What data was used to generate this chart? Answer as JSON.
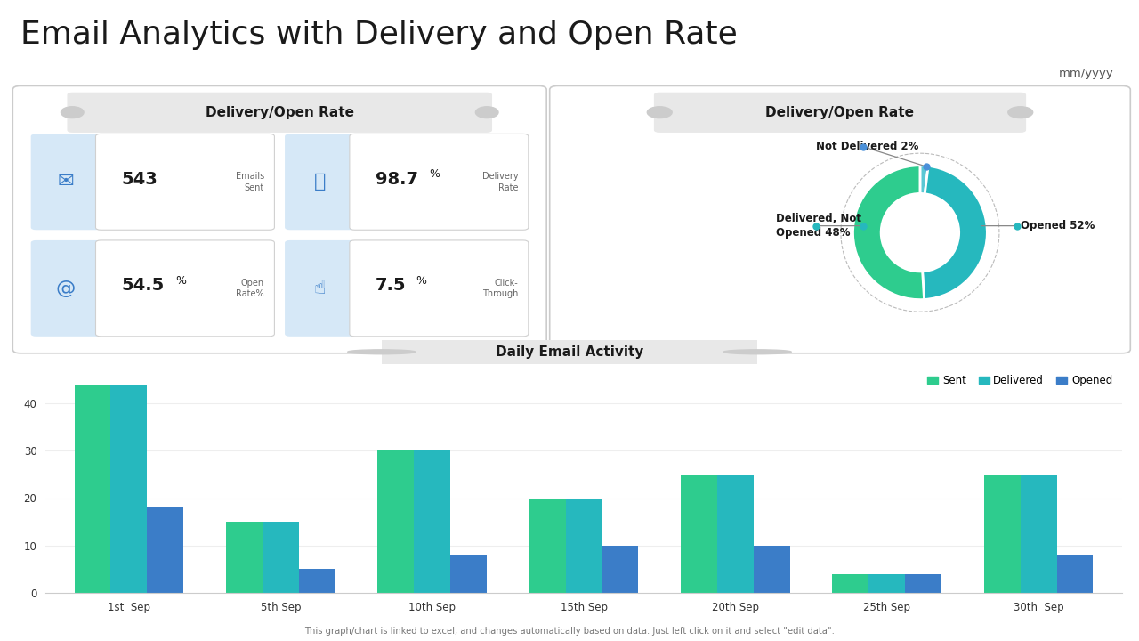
{
  "title": "Email Analytics with Delivery and Open Rate",
  "title_fontsize": 26,
  "background_color": "#ffffff",
  "top_left_title": "Delivery/Open Rate",
  "top_right_title": "Delivery/Open Rate",
  "stats": [
    {
      "value": "543",
      "label": "Emails\nSent",
      "icon_color": "#4a90d9"
    },
    {
      "value": "98.7%",
      "label": "Delivery\nRate",
      "icon_color": "#4a90d9"
    },
    {
      "value": "54.5%",
      "label": "Open\nRate%",
      "icon_color": "#4a90d9"
    },
    {
      "value": "7.5%",
      "label": "Click-\nThrough",
      "icon_color": "#4a90d9"
    }
  ],
  "pie_labels": [
    "Not Delivered 2%",
    "Delivered, Not\nOpened 48%",
    "Opened 52%"
  ],
  "pie_values": [
    2,
    48,
    52
  ],
  "pie_colors": [
    "#5bc8d4",
    "#26b8be",
    "#2ecc8e"
  ],
  "bar_categories": [
    "1st  Sep",
    "5th Sep",
    "10th Sep",
    "15th Sep",
    "20th Sep",
    "25th Sep",
    "30th  Sep"
  ],
  "bar_sent": [
    44,
    15,
    30,
    20,
    25,
    4,
    25
  ],
  "bar_delivered": [
    44,
    15,
    30,
    20,
    25,
    4,
    25
  ],
  "bar_opened": [
    18,
    5,
    8,
    10,
    10,
    4,
    8
  ],
  "bar_color_sent": "#2ecc8e",
  "bar_color_delivered": "#26b8be",
  "bar_color_opened": "#3b7dc8",
  "bar_chart_title": "Daily Email Activity",
  "legend_labels": [
    "Sent",
    "Delivered",
    "Opened"
  ],
  "footer_text": "This graph/chart is linked to excel, and changes automatically based on data. Just left click on it and select \"edit data\".",
  "mm_yyyy_text": "mm/yyyy"
}
